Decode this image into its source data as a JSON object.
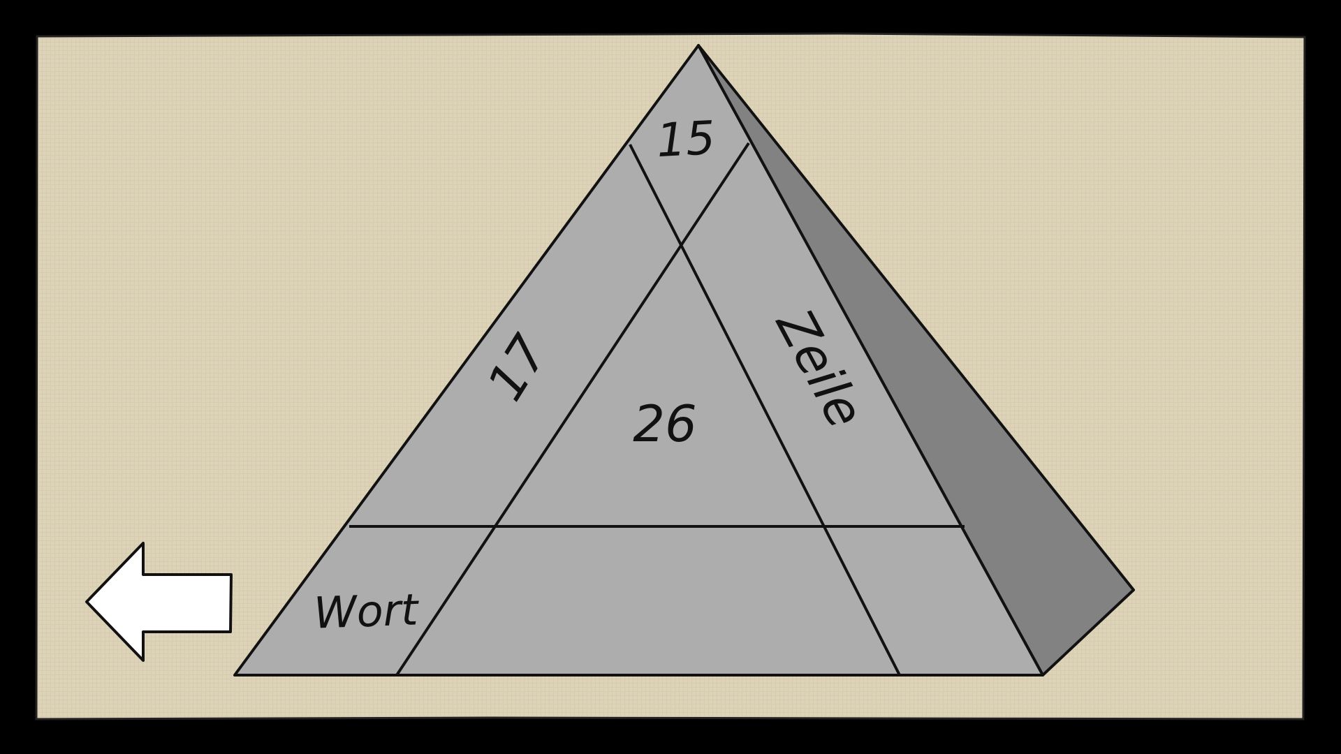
{
  "colors": {
    "frame": "#000000",
    "background": "#ddd3b8",
    "pyramid_face": "#aeadad",
    "pyramid_side": "#828282",
    "outline": "#111111",
    "arrow": "#ffffff"
  },
  "icons": {
    "back": "left-arrow-icon"
  },
  "pyramid": {
    "top": "15",
    "left_edge": "17",
    "center": "26",
    "right_edge": "Zeile",
    "bottom_left": "Wort",
    "bottom_middle": "",
    "bottom_right": ""
  }
}
